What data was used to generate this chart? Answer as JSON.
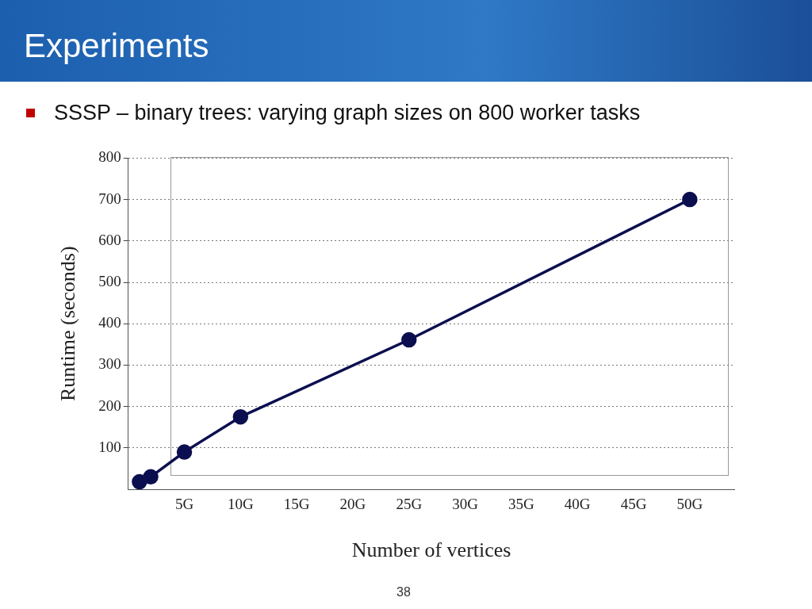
{
  "chart_data": {
    "type": "line",
    "title": "Experiments",
    "subtitle": "SSSP – binary trees: varying graph sizes on 800 worker tasks",
    "xlabel": "Number of vertices",
    "ylabel": "Runtime (seconds)",
    "x": [
      1,
      2,
      5,
      10,
      25,
      50
    ],
    "series": [
      {
        "color": "#0b0f4f",
        "values": [
          18,
          30,
          90,
          175,
          361,
          700
        ]
      }
    ],
    "xlim": [
      0,
      54
    ],
    "xticks": [
      {
        "value": 5,
        "label": "5G"
      },
      {
        "value": 10,
        "label": "10G"
      },
      {
        "value": 15,
        "label": "15G"
      },
      {
        "value": 20,
        "label": "20G"
      },
      {
        "value": 25,
        "label": "25G"
      },
      {
        "value": 30,
        "label": "30G"
      },
      {
        "value": 35,
        "label": "35G"
      },
      {
        "value": 40,
        "label": "40G"
      },
      {
        "value": 45,
        "label": "45G"
      },
      {
        "value": 50,
        "label": "50G"
      }
    ],
    "ylim": [
      0,
      800
    ],
    "yticks": [
      100,
      200,
      300,
      400,
      500,
      600,
      700,
      800
    ],
    "grid": "y",
    "marker": "circle",
    "line_style": "solid",
    "legend": false,
    "annotations": [
      "38"
    ]
  }
}
